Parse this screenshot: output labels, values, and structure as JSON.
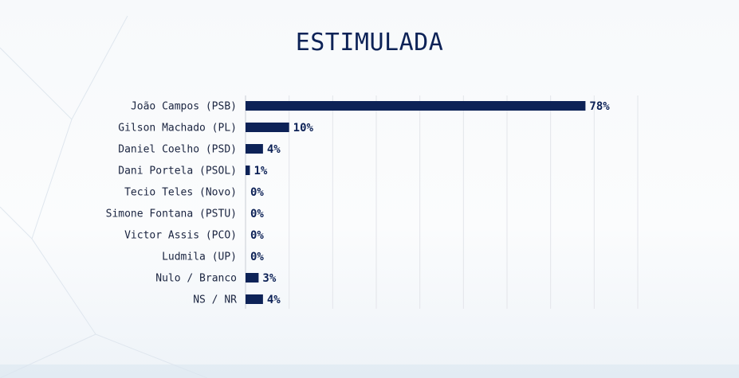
{
  "chart_data": {
    "type": "bar",
    "orientation": "horizontal",
    "title": "ESTIMULADA",
    "categories": [
      "João Campos (PSB)",
      "Gilson Machado (PL)",
      "Daniel Coelho (PSD)",
      "Dani Portela (PSOL)",
      "Tecio Teles (Novo)",
      "Simone Fontana (PSTU)",
      "Victor Assis (PCO)",
      "Ludmila (UP)",
      "Nulo / Branco",
      "NS / NR"
    ],
    "values": [
      78,
      10,
      4,
      1,
      0,
      0,
      0,
      0,
      3,
      4
    ],
    "value_labels": [
      "78%",
      "10%",
      "4%",
      "1%",
      "0%",
      "0%",
      "0%",
      "0%",
      "3%",
      "4%"
    ],
    "xlim": [
      0,
      90
    ],
    "grid": true,
    "bar_color": "#0d2257"
  }
}
